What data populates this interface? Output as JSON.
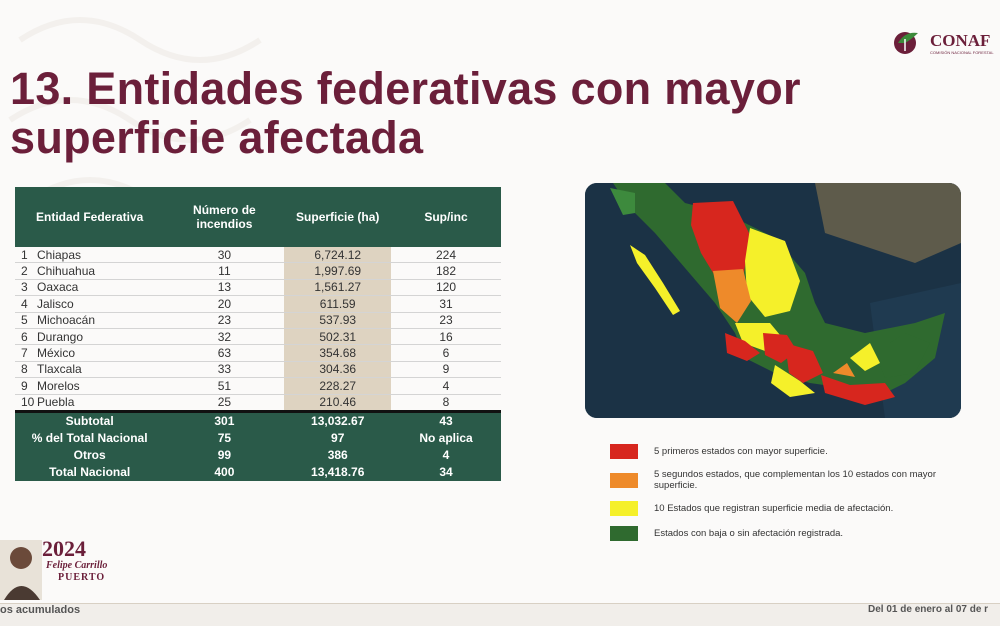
{
  "title": "13. Entidades federativas con mayor superficie afectada",
  "logo": {
    "text": "CONAF",
    "subtitle": "COMISIÓN NACIONAL FORESTAL"
  },
  "table": {
    "headers": [
      "Entidad Federativa",
      "Número de incendios",
      "Superficie (ha)",
      "Sup/inc"
    ],
    "rows": [
      {
        "rank": "1",
        "state": "Chiapas",
        "incendios": "30",
        "superficie": "6,724.12",
        "supinc": "224"
      },
      {
        "rank": "2",
        "state": "Chihuahua",
        "incendios": "11",
        "superficie": "1,997.69",
        "supinc": "182"
      },
      {
        "rank": "3",
        "state": "Oaxaca",
        "incendios": "13",
        "superficie": "1,561.27",
        "supinc": "120"
      },
      {
        "rank": "4",
        "state": "Jalisco",
        "incendios": "20",
        "superficie": "611.59",
        "supinc": "31"
      },
      {
        "rank": "5",
        "state": "Michoacán",
        "incendios": "23",
        "superficie": "537.93",
        "supinc": "23"
      },
      {
        "rank": "6",
        "state": "Durango",
        "incendios": "32",
        "superficie": "502.31",
        "supinc": "16"
      },
      {
        "rank": "7",
        "state": "México",
        "incendios": "63",
        "superficie": "354.68",
        "supinc": "6"
      },
      {
        "rank": "8",
        "state": "Tlaxcala",
        "incendios": "33",
        "superficie": "304.36",
        "supinc": "9"
      },
      {
        "rank": "9",
        "state": "Morelos",
        "incendios": "51",
        "superficie": "228.27",
        "supinc": "4"
      },
      {
        "rank": "10",
        "state": "Puebla",
        "incendios": "25",
        "superficie": "210.46",
        "supinc": "8"
      }
    ],
    "summary": [
      {
        "label": "Subtotal",
        "incendios": "301",
        "superficie": "13,032.67",
        "supinc": "43"
      },
      {
        "label": "% del Total Nacional",
        "incendios": "75",
        "superficie": "97",
        "supinc": "No aplica"
      },
      {
        "label": "Otros",
        "incendios": "99",
        "superficie": "386",
        "supinc": "4"
      },
      {
        "label": "Total Nacional",
        "incendios": "400",
        "superficie": "13,418.76",
        "supinc": "34"
      }
    ]
  },
  "legend": [
    {
      "color": "#d7261e",
      "label": "5 primeros estados con mayor superficie."
    },
    {
      "color": "#ee8a2a",
      "label": "5 segundos estados, que complementan los 10 estados con mayor superficie."
    },
    {
      "color": "#f5f02a",
      "label": "10 Estados que registran superficie media de afectación."
    },
    {
      "color": "#2f6a2f",
      "label": "Estados con baja o sin afectación registrada."
    }
  ],
  "emblem": {
    "year": "2024",
    "name": "Felipe Carrillo",
    "place": "PUERTO"
  },
  "footer": {
    "left": "os acumulados",
    "right": "Del 01 de enero al 07 de r"
  }
}
